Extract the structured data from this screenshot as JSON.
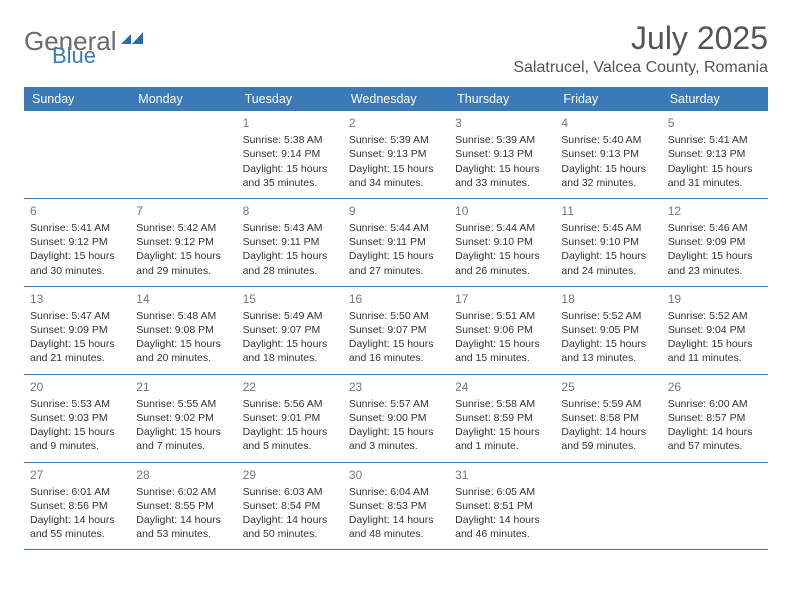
{
  "brand": {
    "name_gray": "General",
    "name_blue": "Blue"
  },
  "title": "July 2025",
  "location": "Salatrucel, Valcea County, Romania",
  "headers": [
    "Sunday",
    "Monday",
    "Tuesday",
    "Wednesday",
    "Thursday",
    "Friday",
    "Saturday"
  ],
  "colors": {
    "header_bg": "#3a7ab8",
    "header_fg": "#ffffff",
    "border": "#3a7ab8",
    "text": "#333333",
    "daynum": "#777777",
    "logo_gray": "#6b6b6b",
    "logo_blue": "#3a7ab8",
    "background": "#ffffff"
  },
  "typography": {
    "title_fontsize": 32,
    "location_fontsize": 16,
    "header_fontsize": 12.5,
    "cell_fontsize": 10.5,
    "daynum_fontsize": 12
  },
  "weeks": [
    [
      null,
      null,
      {
        "n": "1",
        "sr": "Sunrise: 5:38 AM",
        "ss": "Sunset: 9:14 PM",
        "d1": "Daylight: 15 hours",
        "d2": "and 35 minutes."
      },
      {
        "n": "2",
        "sr": "Sunrise: 5:39 AM",
        "ss": "Sunset: 9:13 PM",
        "d1": "Daylight: 15 hours",
        "d2": "and 34 minutes."
      },
      {
        "n": "3",
        "sr": "Sunrise: 5:39 AM",
        "ss": "Sunset: 9:13 PM",
        "d1": "Daylight: 15 hours",
        "d2": "and 33 minutes."
      },
      {
        "n": "4",
        "sr": "Sunrise: 5:40 AM",
        "ss": "Sunset: 9:13 PM",
        "d1": "Daylight: 15 hours",
        "d2": "and 32 minutes."
      },
      {
        "n": "5",
        "sr": "Sunrise: 5:41 AM",
        "ss": "Sunset: 9:13 PM",
        "d1": "Daylight: 15 hours",
        "d2": "and 31 minutes."
      }
    ],
    [
      {
        "n": "6",
        "sr": "Sunrise: 5:41 AM",
        "ss": "Sunset: 9:12 PM",
        "d1": "Daylight: 15 hours",
        "d2": "and 30 minutes."
      },
      {
        "n": "7",
        "sr": "Sunrise: 5:42 AM",
        "ss": "Sunset: 9:12 PM",
        "d1": "Daylight: 15 hours",
        "d2": "and 29 minutes."
      },
      {
        "n": "8",
        "sr": "Sunrise: 5:43 AM",
        "ss": "Sunset: 9:11 PM",
        "d1": "Daylight: 15 hours",
        "d2": "and 28 minutes."
      },
      {
        "n": "9",
        "sr": "Sunrise: 5:44 AM",
        "ss": "Sunset: 9:11 PM",
        "d1": "Daylight: 15 hours",
        "d2": "and 27 minutes."
      },
      {
        "n": "10",
        "sr": "Sunrise: 5:44 AM",
        "ss": "Sunset: 9:10 PM",
        "d1": "Daylight: 15 hours",
        "d2": "and 26 minutes."
      },
      {
        "n": "11",
        "sr": "Sunrise: 5:45 AM",
        "ss": "Sunset: 9:10 PM",
        "d1": "Daylight: 15 hours",
        "d2": "and 24 minutes."
      },
      {
        "n": "12",
        "sr": "Sunrise: 5:46 AM",
        "ss": "Sunset: 9:09 PM",
        "d1": "Daylight: 15 hours",
        "d2": "and 23 minutes."
      }
    ],
    [
      {
        "n": "13",
        "sr": "Sunrise: 5:47 AM",
        "ss": "Sunset: 9:09 PM",
        "d1": "Daylight: 15 hours",
        "d2": "and 21 minutes."
      },
      {
        "n": "14",
        "sr": "Sunrise: 5:48 AM",
        "ss": "Sunset: 9:08 PM",
        "d1": "Daylight: 15 hours",
        "d2": "and 20 minutes."
      },
      {
        "n": "15",
        "sr": "Sunrise: 5:49 AM",
        "ss": "Sunset: 9:07 PM",
        "d1": "Daylight: 15 hours",
        "d2": "and 18 minutes."
      },
      {
        "n": "16",
        "sr": "Sunrise: 5:50 AM",
        "ss": "Sunset: 9:07 PM",
        "d1": "Daylight: 15 hours",
        "d2": "and 16 minutes."
      },
      {
        "n": "17",
        "sr": "Sunrise: 5:51 AM",
        "ss": "Sunset: 9:06 PM",
        "d1": "Daylight: 15 hours",
        "d2": "and 15 minutes."
      },
      {
        "n": "18",
        "sr": "Sunrise: 5:52 AM",
        "ss": "Sunset: 9:05 PM",
        "d1": "Daylight: 15 hours",
        "d2": "and 13 minutes."
      },
      {
        "n": "19",
        "sr": "Sunrise: 5:52 AM",
        "ss": "Sunset: 9:04 PM",
        "d1": "Daylight: 15 hours",
        "d2": "and 11 minutes."
      }
    ],
    [
      {
        "n": "20",
        "sr": "Sunrise: 5:53 AM",
        "ss": "Sunset: 9:03 PM",
        "d1": "Daylight: 15 hours",
        "d2": "and 9 minutes."
      },
      {
        "n": "21",
        "sr": "Sunrise: 5:55 AM",
        "ss": "Sunset: 9:02 PM",
        "d1": "Daylight: 15 hours",
        "d2": "and 7 minutes."
      },
      {
        "n": "22",
        "sr": "Sunrise: 5:56 AM",
        "ss": "Sunset: 9:01 PM",
        "d1": "Daylight: 15 hours",
        "d2": "and 5 minutes."
      },
      {
        "n": "23",
        "sr": "Sunrise: 5:57 AM",
        "ss": "Sunset: 9:00 PM",
        "d1": "Daylight: 15 hours",
        "d2": "and 3 minutes."
      },
      {
        "n": "24",
        "sr": "Sunrise: 5:58 AM",
        "ss": "Sunset: 8:59 PM",
        "d1": "Daylight: 15 hours",
        "d2": "and 1 minute."
      },
      {
        "n": "25",
        "sr": "Sunrise: 5:59 AM",
        "ss": "Sunset: 8:58 PM",
        "d1": "Daylight: 14 hours",
        "d2": "and 59 minutes."
      },
      {
        "n": "26",
        "sr": "Sunrise: 6:00 AM",
        "ss": "Sunset: 8:57 PM",
        "d1": "Daylight: 14 hours",
        "d2": "and 57 minutes."
      }
    ],
    [
      {
        "n": "27",
        "sr": "Sunrise: 6:01 AM",
        "ss": "Sunset: 8:56 PM",
        "d1": "Daylight: 14 hours",
        "d2": "and 55 minutes."
      },
      {
        "n": "28",
        "sr": "Sunrise: 6:02 AM",
        "ss": "Sunset: 8:55 PM",
        "d1": "Daylight: 14 hours",
        "d2": "and 53 minutes."
      },
      {
        "n": "29",
        "sr": "Sunrise: 6:03 AM",
        "ss": "Sunset: 8:54 PM",
        "d1": "Daylight: 14 hours",
        "d2": "and 50 minutes."
      },
      {
        "n": "30",
        "sr": "Sunrise: 6:04 AM",
        "ss": "Sunset: 8:53 PM",
        "d1": "Daylight: 14 hours",
        "d2": "and 48 minutes."
      },
      {
        "n": "31",
        "sr": "Sunrise: 6:05 AM",
        "ss": "Sunset: 8:51 PM",
        "d1": "Daylight: 14 hours",
        "d2": "and 46 minutes."
      },
      null,
      null
    ]
  ]
}
